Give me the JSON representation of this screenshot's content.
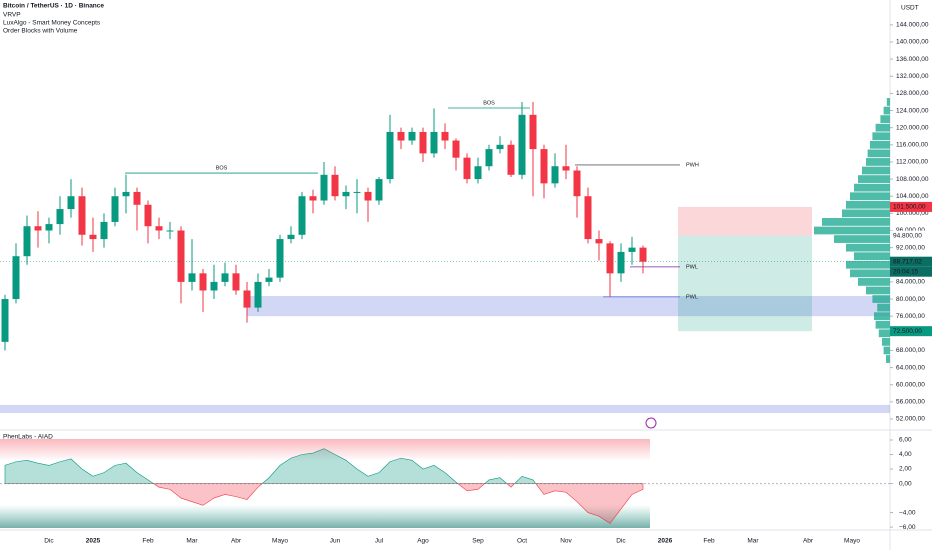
{
  "header": {
    "title": "Bitcoin / TetherUS · 1D · Binance",
    "indicators": [
      "VRVP",
      "LuxAlgo - Smart Money Concepts",
      "Order Blocks with Volume"
    ],
    "currency": "USDT"
  },
  "chart_data": {
    "type": "candlestick",
    "categories": [
      null,
      null,
      null,
      null,
      "Dic",
      null,
      null,
      null,
      "2025",
      null,
      null,
      null,
      null,
      "Feb",
      null,
      null,
      null,
      "Mar",
      null,
      null,
      null,
      "Abr",
      null,
      null,
      null,
      "Mayo",
      null,
      null,
      null,
      null,
      "Jun",
      null,
      null,
      null,
      "Jul",
      null,
      null,
      null,
      "Ago",
      null,
      null,
      null,
      null,
      "Sep",
      null,
      null,
      null,
      "Oct",
      null,
      null,
      null,
      "Nov",
      null,
      null,
      null,
      null,
      "Dic",
      null,
      null,
      null,
      "2026",
      null,
      null,
      null,
      "Feb",
      null,
      null,
      null,
      "Mar",
      null,
      null,
      null,
      null,
      "Abr",
      null,
      null,
      null,
      "Mayo",
      null,
      null
    ],
    "open": [
      70000,
      80000,
      90000,
      97000,
      96000,
      97500,
      101000,
      104000,
      95000,
      94000,
      98000,
      104000,
      105000,
      102000,
      97000,
      96000,
      96000,
      84000,
      86000,
      82000,
      84000,
      86000,
      82000,
      78000,
      84000,
      85000,
      94000,
      95000,
      104000,
      103000,
      109000,
      104000,
      105000,
      105000,
      103000,
      108000,
      119000,
      117000,
      119000,
      114000,
      119000,
      117000,
      113000,
      108000,
      111000,
      115000,
      116000,
      109000,
      123000,
      115000,
      107000,
      111000,
      110000,
      104000,
      94000,
      93000,
      86000,
      91000,
      92000,
      null,
      null,
      null,
      null,
      null,
      null,
      null,
      null,
      null,
      null,
      null,
      null,
      null,
      null,
      null,
      null,
      null,
      null,
      null,
      null,
      null
    ],
    "high": [
      81000,
      93000,
      99500,
      100500,
      99000,
      104000,
      108000,
      106000,
      99000,
      100000,
      106000,
      109000,
      106000,
      103000,
      99000,
      98000,
      97000,
      94000,
      87000,
      88000,
      88500,
      88000,
      84000,
      86000,
      87000,
      95000,
      97000,
      105000,
      105500,
      112000,
      111000,
      106500,
      108000,
      106000,
      108500,
      123000,
      120000,
      120000,
      120000,
      124500,
      121000,
      117500,
      114000,
      113000,
      116000,
      118000,
      117000,
      126000,
      126000,
      116000,
      114000,
      116000,
      111000,
      106000,
      96000,
      93500,
      93000,
      94500,
      92500,
      null,
      null,
      null,
      null,
      null,
      null,
      null,
      null,
      null,
      null,
      null,
      null,
      null,
      null,
      null,
      null,
      null,
      null,
      null,
      null,
      null
    ],
    "low": [
      68000,
      79000,
      88000,
      92000,
      93000,
      95000,
      99000,
      92500,
      91000,
      92000,
      97000,
      100000,
      96000,
      93000,
      94000,
      94000,
      79000,
      82000,
      77000,
      80000,
      83000,
      81000,
      74500,
      77000,
      83000,
      84000,
      93000,
      94000,
      100000,
      102000,
      103000,
      101000,
      100000,
      98000,
      102000,
      107000,
      115000,
      116000,
      112000,
      113000,
      115000,
      110000,
      107000,
      107000,
      110000,
      114000,
      108500,
      108000,
      104000,
      103500,
      106000,
      108000,
      99000,
      93000,
      89000,
      80600,
      84000,
      88000,
      86000,
      null,
      null,
      null,
      null,
      null,
      null,
      null,
      null,
      null,
      null,
      null,
      null,
      null,
      null,
      null,
      null,
      null,
      null,
      null,
      null,
      null
    ],
    "close": [
      80000,
      90000,
      97000,
      96000,
      97500,
      101000,
      104000,
      95000,
      94000,
      98000,
      104000,
      105000,
      102000,
      97000,
      96000,
      96000,
      84000,
      86000,
      82000,
      84000,
      86000,
      82000,
      78000,
      84000,
      85000,
      94000,
      95000,
      104000,
      103000,
      109000,
      104000,
      105000,
      105000,
      103000,
      108000,
      119000,
      117000,
      119000,
      114000,
      119000,
      117000,
      113000,
      108000,
      111000,
      115000,
      116000,
      109000,
      123000,
      115000,
      107000,
      111000,
      110000,
      104000,
      94000,
      93000,
      86000,
      91000,
      92000,
      88717,
      null,
      null,
      null,
      null,
      null,
      null,
      null,
      null,
      null,
      null,
      null,
      null,
      null,
      null,
      null,
      null,
      null,
      null,
      null,
      null,
      null
    ],
    "up_color": "#089981",
    "down_color": "#f23645",
    "ylim": [
      49900,
      149800
    ],
    "yticks": [
      {
        "value": 52000,
        "label": "52.000,00"
      },
      {
        "value": 56000,
        "label": "56.000,00"
      },
      {
        "value": 60000,
        "label": "60.000,00"
      },
      {
        "value": 64000,
        "label": "64.000,00"
      },
      {
        "value": 68000,
        "label": "68.000,00"
      },
      {
        "value": 76000,
        "label": "76.000,00"
      },
      {
        "value": 80000,
        "label": "80.000,00"
      },
      {
        "value": 84000,
        "label": "84.000,00"
      },
      {
        "value": 92000,
        "label": "92.000,00"
      },
      {
        "value": 96000,
        "label": "96.000,00"
      },
      {
        "value": 100000,
        "label": "100.000,00"
      },
      {
        "value": 104000,
        "label": "104.000,00"
      },
      {
        "value": 108000,
        "label": "108.000,00"
      },
      {
        "value": 112000,
        "label": "112.000,00"
      },
      {
        "value": 116000,
        "label": "116.000,00"
      },
      {
        "value": 120000,
        "label": "120.000,00"
      },
      {
        "value": 124000,
        "label": "124.000,00"
      },
      {
        "value": 128000,
        "label": "128.000,00"
      },
      {
        "value": 132000,
        "label": "132.000,00"
      },
      {
        "value": 136000,
        "label": "136.000,00"
      },
      {
        "value": 140000,
        "label": "140.000,00"
      },
      {
        "value": 144000,
        "label": "144.000,00"
      }
    ],
    "annotations": [
      {
        "text": "BOS",
        "price": 109400
      },
      {
        "text": "BOS",
        "price": 124600
      },
      {
        "text": "PWH",
        "price": 111300
      },
      {
        "text": "PWL",
        "price": 87500
      },
      {
        "text": "PWL",
        "price": 80500
      }
    ],
    "zones": [
      [
        76000,
        80700
      ],
      [
        53400,
        55300
      ]
    ],
    "position": {
      "stop": {
        "value": 101500,
        "label": "101.500,00"
      },
      "entry": {
        "value": 94800,
        "label": "94.800,00"
      },
      "target": {
        "value": 72500,
        "label": "72.500,00"
      }
    },
    "last_price": {
      "value": 88717.02,
      "label": "88.717,02"
    },
    "countdown": "20:04:15",
    "volume_profile": {
      "levels": [
        66000,
        68000,
        70000,
        72000,
        74000,
        76000,
        78000,
        80000,
        82000,
        84000,
        86000,
        88000,
        90000,
        92000,
        94000,
        96000,
        98000,
        100000,
        102000,
        104000,
        106000,
        108000,
        110000,
        112000,
        114000,
        116000,
        118000,
        120000,
        122000,
        124000,
        126000
      ],
      "values": [
        5,
        8,
        10,
        14,
        18,
        20,
        16,
        22,
        30,
        40,
        50,
        55,
        45,
        55,
        70,
        95,
        85,
        60,
        55,
        50,
        45,
        40,
        35,
        30,
        28,
        25,
        22,
        18,
        12,
        8,
        4
      ]
    }
  },
  "oscillator": {
    "title": "PhenLabs - AIAD",
    "values": [
      2.5,
      3.0,
      3.2,
      2.8,
      2.5,
      3.0,
      3.4,
      2.0,
      1.0,
      1.5,
      2.5,
      2.8,
      1.5,
      0.5,
      -0.5,
      -0.8,
      -2.0,
      -2.5,
      -3.0,
      -2.0,
      -1.5,
      -1.8,
      -2.2,
      -0.5,
      0.8,
      2.5,
      3.5,
      4.0,
      4.2,
      4.8,
      4.0,
      3.2,
      2.0,
      1.0,
      1.5,
      3.0,
      3.5,
      3.2,
      2.0,
      2.5,
      1.5,
      0.2,
      -1.0,
      -0.8,
      0.5,
      0.8,
      -0.5,
      1.0,
      0.5,
      -1.5,
      -1.0,
      -1.2,
      -2.5,
      -4.0,
      -4.5,
      -5.5,
      -3.5,
      -1.5,
      -0.8,
      null,
      null,
      null,
      null,
      null,
      null,
      null,
      null,
      null,
      null,
      null,
      null,
      null,
      null,
      null,
      null,
      null,
      null,
      null,
      null,
      null
    ],
    "ylim": [
      -6.4,
      7.1
    ],
    "yticks": [
      {
        "value": 6,
        "label": "6,00"
      },
      {
        "value": 4,
        "label": "4,00"
      },
      {
        "value": 2,
        "label": "2,00"
      },
      {
        "value": 0,
        "label": "0,00"
      },
      {
        "value": -4,
        "label": "−4,00"
      },
      {
        "value": -6,
        "label": "−6,00"
      }
    ]
  }
}
